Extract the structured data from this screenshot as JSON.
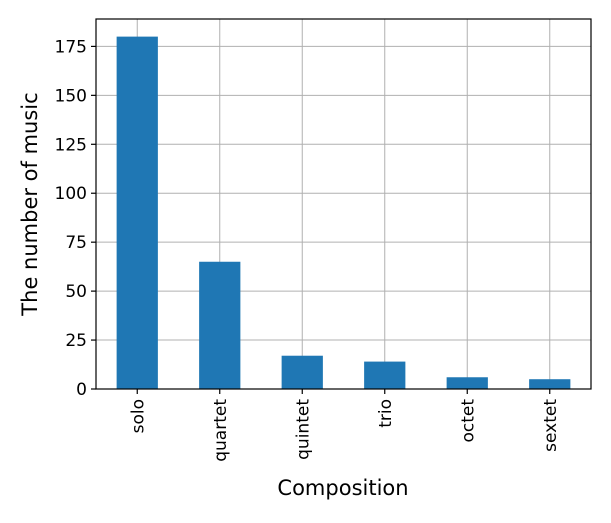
{
  "chart_data": {
    "type": "bar",
    "title": "",
    "xlabel": "Composition",
    "ylabel": "The number of music",
    "categories": [
      "solo",
      "quartet",
      "quintet",
      "trio",
      "octet",
      "sextet"
    ],
    "values": [
      180,
      65,
      17,
      14,
      6,
      5
    ],
    "ylim": [
      0,
      189
    ],
    "yticks": [
      0,
      25,
      50,
      75,
      100,
      125,
      150,
      175
    ],
    "grid": true,
    "legend": "none",
    "bar_color": "#1f77b4",
    "grid_color": "#b0b0b0",
    "axis_color": "#000000"
  }
}
